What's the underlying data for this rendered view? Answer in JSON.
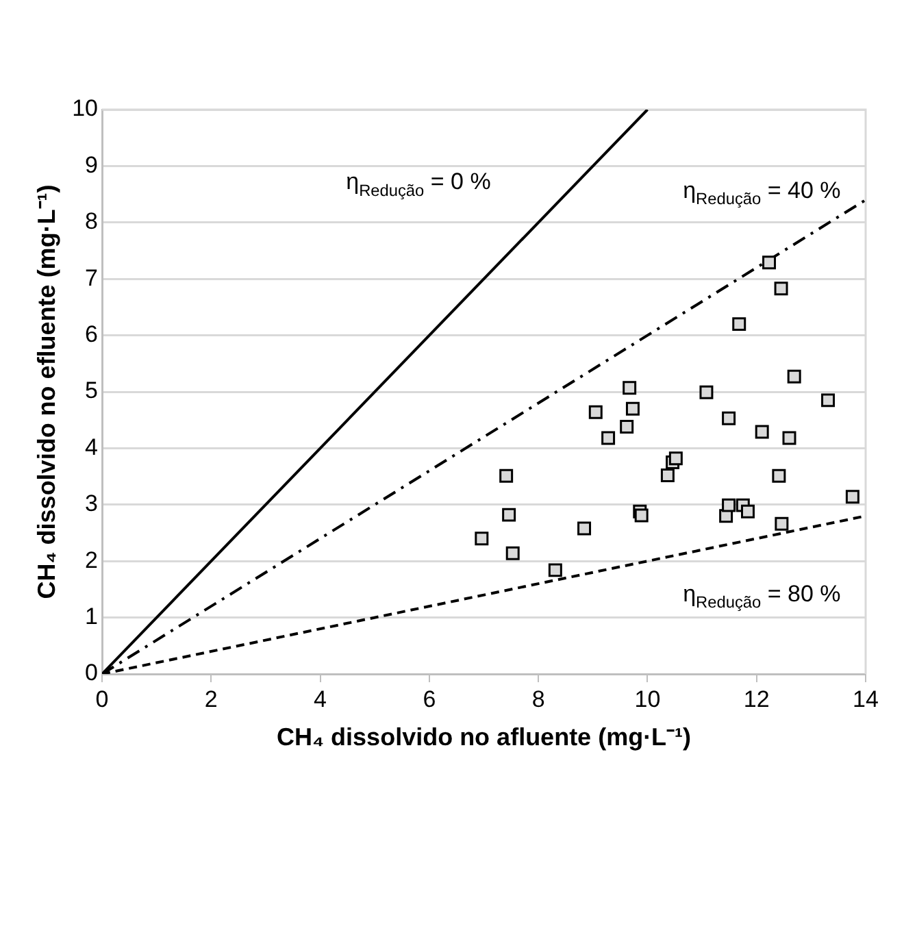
{
  "chart_data": {
    "type": "scatter",
    "xlabel": "CH₄ dissolvido no afluente (mg·L⁻¹)",
    "ylabel": "CH₄ dissolvido no efluente (mg·L⁻¹)",
    "xlim": [
      0,
      14
    ],
    "xticks": [
      0,
      2,
      4,
      6,
      8,
      10,
      12,
      14
    ],
    "ylim": [
      0,
      10
    ],
    "yticks": [
      0,
      1,
      2,
      3,
      4,
      5,
      6,
      7,
      8,
      9,
      10
    ],
    "grid": "y",
    "legend": false,
    "marker": "square",
    "series": [
      {
        "type": "scatter",
        "color": "#d9d9d9",
        "x": [
          7.41,
          7.46,
          6.96,
          7.53,
          8.31,
          8.84,
          9.05,
          9.28,
          9.67,
          9.73,
          9.62,
          9.86,
          9.89,
          10.37,
          10.46,
          10.52,
          11.08,
          11.49,
          11.44,
          11.49,
          11.75,
          11.84,
          11.68,
          12.23,
          12.45,
          12.1,
          12.6,
          12.41,
          12.46,
          12.69,
          13.31,
          13.76
        ],
        "values": [
          3.51,
          2.82,
          2.4,
          2.14,
          1.84,
          2.58,
          4.64,
          4.18,
          5.07,
          4.7,
          4.38,
          2.88,
          2.81,
          3.52,
          3.75,
          3.82,
          4.99,
          4.53,
          2.8,
          2.99,
          2.99,
          2.88,
          6.2,
          7.29,
          6.83,
          4.29,
          4.18,
          3.51,
          2.66,
          5.27,
          4.85,
          3.14
        ]
      },
      {
        "type": "line",
        "name": "η$_{Redução}$ = 0 %",
        "color": "#000000",
        "line_style": "solid",
        "marker": "none",
        "x": [
          0,
          10
        ],
        "values": [
          0,
          10
        ]
      },
      {
        "type": "line",
        "name": "η$_{Redução}$ = 40 %",
        "color": "#000000",
        "line_style": "dashdot",
        "marker": "none",
        "x": [
          0,
          14
        ],
        "values": [
          0,
          8.4
        ]
      },
      {
        "type": "line",
        "name": "η$_{Redução}$ = 80 %",
        "color": "#000000",
        "line_style": "dashed",
        "marker": "none",
        "x": [
          0,
          14
        ],
        "values": [
          0,
          2.8
        ]
      }
    ]
  }
}
